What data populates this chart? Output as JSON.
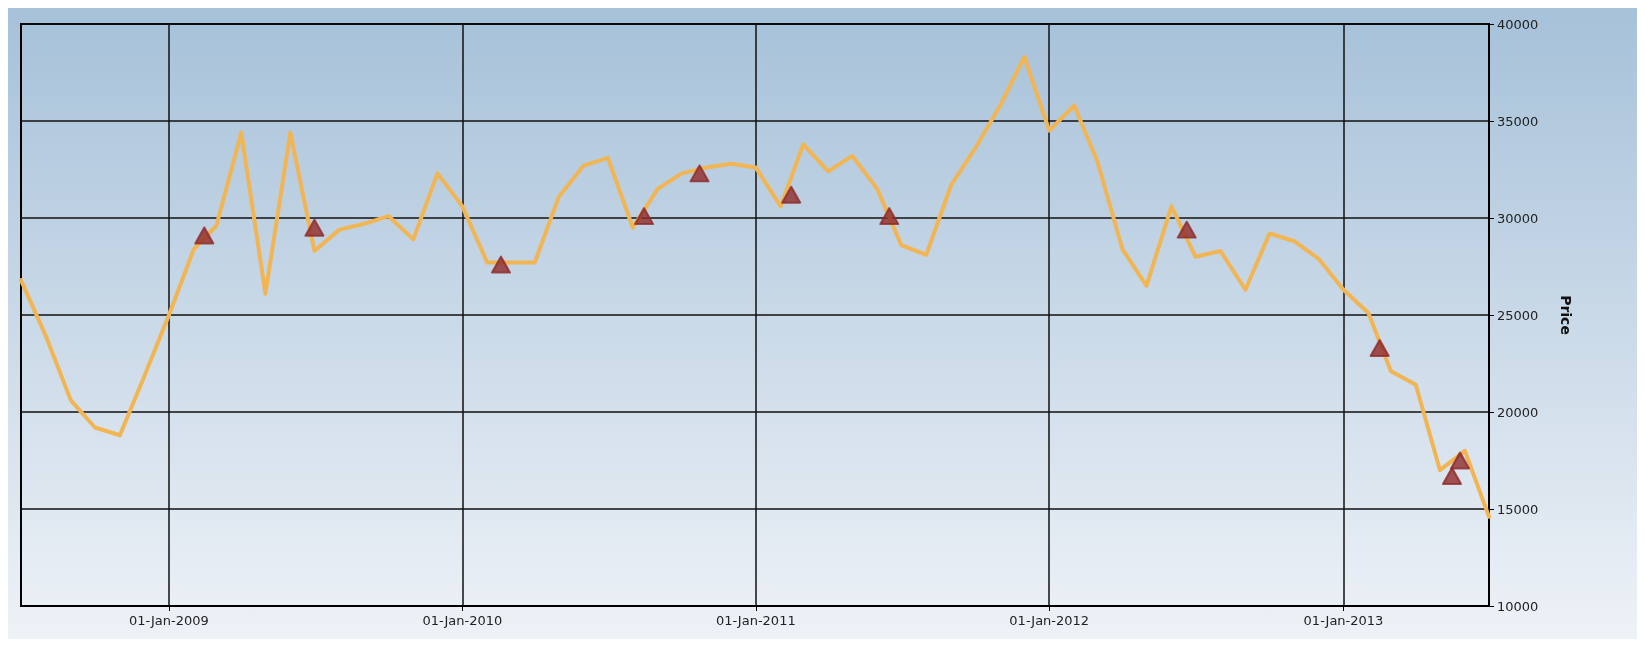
{
  "chart_data": {
    "type": "line",
    "ylabel": "Price",
    "xlim": [
      "2008-07-01",
      "2013-07-01"
    ],
    "ylim": [
      10000,
      40000
    ],
    "xticks": [
      {
        "value": "2009-01-01",
        "label": "01-Jan-2009"
      },
      {
        "value": "2010-01-01",
        "label": "01-Jan-2010"
      },
      {
        "value": "2011-01-01",
        "label": "01-Jan-2011"
      },
      {
        "value": "2012-01-01",
        "label": "01-Jan-2012"
      },
      {
        "value": "2013-01-01",
        "label": "01-Jan-2013"
      }
    ],
    "yticks": [
      10000,
      15000,
      20000,
      25000,
      30000,
      35000,
      40000
    ],
    "grid": true,
    "series": [
      {
        "color": "#f2b553",
        "marker": "none",
        "line_style": "solid",
        "x": [
          "2008-07-01",
          "2008-08-01",
          "2008-09-01",
          "2008-10-01",
          "2008-11-01",
          "2008-12-01",
          "2009-01-01",
          "2009-02-01",
          "2009-03-01",
          "2009-04-01",
          "2009-05-01",
          "2009-06-01",
          "2009-07-01",
          "2009-08-01",
          "2009-09-01",
          "2009-10-01",
          "2009-11-01",
          "2009-12-01",
          "2010-01-01",
          "2010-02-01",
          "2010-03-01",
          "2010-04-01",
          "2010-05-01",
          "2010-06-01",
          "2010-07-01",
          "2010-08-01",
          "2010-09-01",
          "2010-10-01",
          "2010-11-01",
          "2010-12-01",
          "2011-01-01",
          "2011-02-01",
          "2011-03-01",
          "2011-04-01",
          "2011-05-01",
          "2011-06-01",
          "2011-07-01",
          "2011-08-01",
          "2011-09-01",
          "2011-10-01",
          "2011-11-01",
          "2011-12-01",
          "2012-01-01",
          "2012-02-01",
          "2012-03-01",
          "2012-04-01",
          "2012-05-01",
          "2012-06-01",
          "2012-07-01",
          "2012-08-01",
          "2012-09-01",
          "2012-10-01",
          "2012-11-01",
          "2012-12-01",
          "2013-01-01",
          "2013-02-01",
          "2013-03-01",
          "2013-04-01",
          "2013-05-01",
          "2013-06-01",
          "2013-07-01"
        ],
        "values": [
          26800,
          23900,
          20600,
          19200,
          18800,
          21800,
          25000,
          28400,
          29600,
          34400,
          26100,
          34400,
          28300,
          29400,
          29700,
          30100,
          28900,
          32300,
          30600,
          27700,
          27700,
          27700,
          31100,
          32700,
          33100,
          29500,
          31500,
          32300,
          32600,
          32800,
          32600,
          30600,
          33800,
          32400,
          33200,
          31500,
          28600,
          28100,
          31700,
          33600,
          35800,
          38300,
          34500,
          35800,
          32900,
          28400,
          26500,
          30600,
          28000,
          28300,
          26300,
          29200,
          28800,
          27900,
          26300,
          25100,
          22100,
          21400,
          17000,
          18000,
          14600
        ]
      },
      {
        "type": "scatter",
        "color": "#8e2b2b",
        "marker": "triangle",
        "x": [
          "2009-02-14",
          "2009-07-01",
          "2010-02-18",
          "2010-08-15",
          "2010-10-23",
          "2011-02-14",
          "2011-06-16",
          "2012-06-20",
          "2013-02-15",
          "2013-05-16",
          "2013-05-26"
        ],
        "values": [
          29100,
          29500,
          27600,
          30100,
          32300,
          31200,
          30100,
          29400,
          23300,
          16700,
          17500
        ]
      }
    ]
  }
}
